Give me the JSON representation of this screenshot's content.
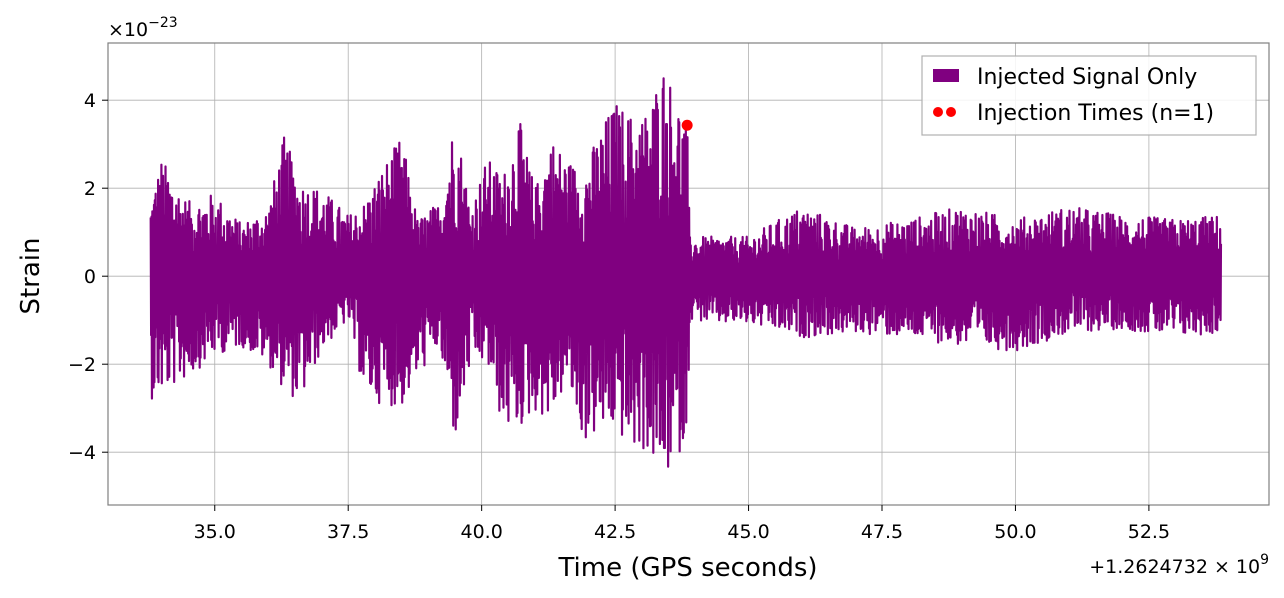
{
  "chart_data": {
    "type": "line",
    "title": "",
    "xlabel": "Time (GPS seconds)",
    "ylabel": "Strain",
    "x_offset_label": "+1.2624732 × 10^9",
    "y_scale_label": "×10^−23",
    "xlim": [
      33.0,
      54.75
    ],
    "ylim": [
      -5.2,
      5.3
    ],
    "x_ticks": [
      35.0,
      37.5,
      40.0,
      42.5,
      45.0,
      47.5,
      50.0,
      52.5
    ],
    "x_tick_labels": [
      "35.0",
      "37.5",
      "40.0",
      "42.5",
      "45.0",
      "47.5",
      "50.0",
      "52.5"
    ],
    "y_ticks": [
      -4,
      -2,
      0,
      2,
      4
    ],
    "y_tick_labels": [
      "−4",
      "−2",
      "0",
      "2",
      "4"
    ],
    "grid": true,
    "legend_position": "top-right",
    "series": [
      {
        "name": "Injected Signal Only",
        "color": "#800080",
        "kind": "line",
        "envelope": {
          "x": [
            33.8,
            34.0,
            34.5,
            35.0,
            35.5,
            36.0,
            36.3,
            36.6,
            37.0,
            37.5,
            37.8,
            38.1,
            38.5,
            38.8,
            39.2,
            39.5,
            39.8,
            40.1,
            40.4,
            40.7,
            41.0,
            41.3,
            41.6,
            41.9,
            42.2,
            42.5,
            42.8,
            43.1,
            43.4,
            43.6,
            43.85,
            43.9,
            44.5,
            45.0,
            46.0,
            47.0,
            48.0,
            49.0,
            50.0,
            51.0,
            52.0,
            53.0,
            53.85
          ],
          "upper": [
            1.8,
            2.7,
            1.7,
            1.9,
            1.2,
            1.6,
            3.2,
            2.2,
            2.0,
            1.4,
            1.7,
            2.4,
            3.2,
            1.3,
            1.7,
            3.7,
            1.6,
            2.7,
            2.3,
            3.6,
            2.0,
            3.2,
            2.7,
            2.4,
            3.3,
            4.0,
            3.7,
            3.8,
            4.9,
            4.3,
            3.5,
            0.9,
            0.9,
            0.9,
            1.6,
            1.1,
            1.3,
            1.6,
            1.3,
            1.6,
            1.4,
            1.3,
            1.4
          ],
          "lower": [
            -2.8,
            -2.7,
            -2.3,
            -1.8,
            -1.6,
            -2.0,
            -2.6,
            -2.9,
            -1.7,
            -1.0,
            -2.7,
            -2.9,
            -3.0,
            -2.3,
            -1.6,
            -3.8,
            -2.0,
            -2.0,
            -3.5,
            -3.5,
            -3.1,
            -3.3,
            -2.4,
            -3.8,
            -3.6,
            -3.5,
            -4.0,
            -4.0,
            -4.7,
            -4.3,
            -3.7,
            -1.0,
            -1.1,
            -1.1,
            -1.4,
            -1.3,
            -1.4,
            -1.6,
            -1.7,
            -1.3,
            -1.2,
            -1.4,
            -1.3
          ]
        }
      },
      {
        "name": "Injection Times (n=1)",
        "color": "#ff0000",
        "kind": "scatter",
        "x": [
          43.85
        ],
        "y": [
          3.43
        ]
      }
    ]
  }
}
